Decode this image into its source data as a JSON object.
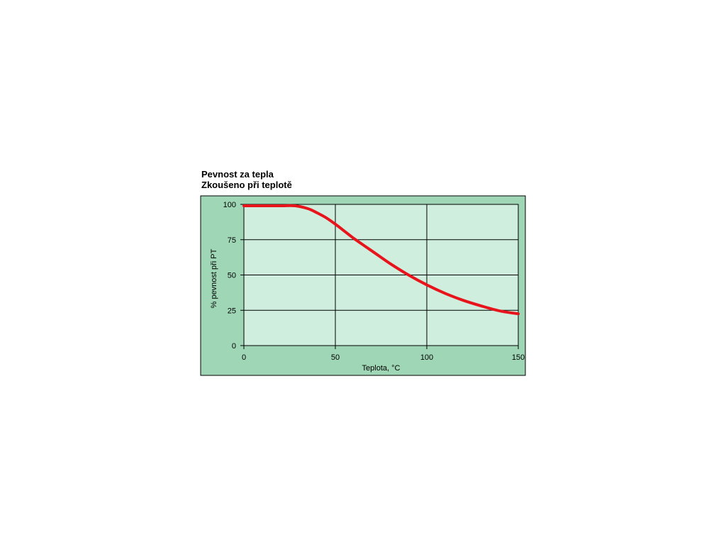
{
  "chart_data": {
    "type": "line",
    "title": "Pevnost za tepla",
    "subtitle": "Zkoušeno při teplotě",
    "xlabel": "Teplota, °C",
    "ylabel": "% pevnost při PT",
    "xlim": [
      0,
      150
    ],
    "ylim": [
      0,
      100
    ],
    "x_ticks": [
      0,
      50,
      100,
      150
    ],
    "y_ticks": [
      0,
      25,
      50,
      75,
      100
    ],
    "grid": true,
    "series": [
      {
        "color": "#e8141c",
        "points": [
          {
            "x": 0,
            "y": 99
          },
          {
            "x": 10,
            "y": 99
          },
          {
            "x": 20,
            "y": 99
          },
          {
            "x": 28,
            "y": 99
          },
          {
            "x": 35,
            "y": 97
          },
          {
            "x": 40,
            "y": 94
          },
          {
            "x": 45,
            "y": 90.5
          },
          {
            "x": 50,
            "y": 86
          },
          {
            "x": 55,
            "y": 81
          },
          {
            "x": 60,
            "y": 76
          },
          {
            "x": 70,
            "y": 67
          },
          {
            "x": 80,
            "y": 58
          },
          {
            "x": 90,
            "y": 50
          },
          {
            "x": 100,
            "y": 43
          },
          {
            "x": 110,
            "y": 37
          },
          {
            "x": 120,
            "y": 32
          },
          {
            "x": 130,
            "y": 28
          },
          {
            "x": 140,
            "y": 24.5
          },
          {
            "x": 150,
            "y": 22.5
          }
        ]
      }
    ],
    "colors": {
      "outer_bg": "#9fd6b6",
      "plot_bg": "#cfeedd",
      "grid": "#000000",
      "line": "#e8141c"
    }
  }
}
